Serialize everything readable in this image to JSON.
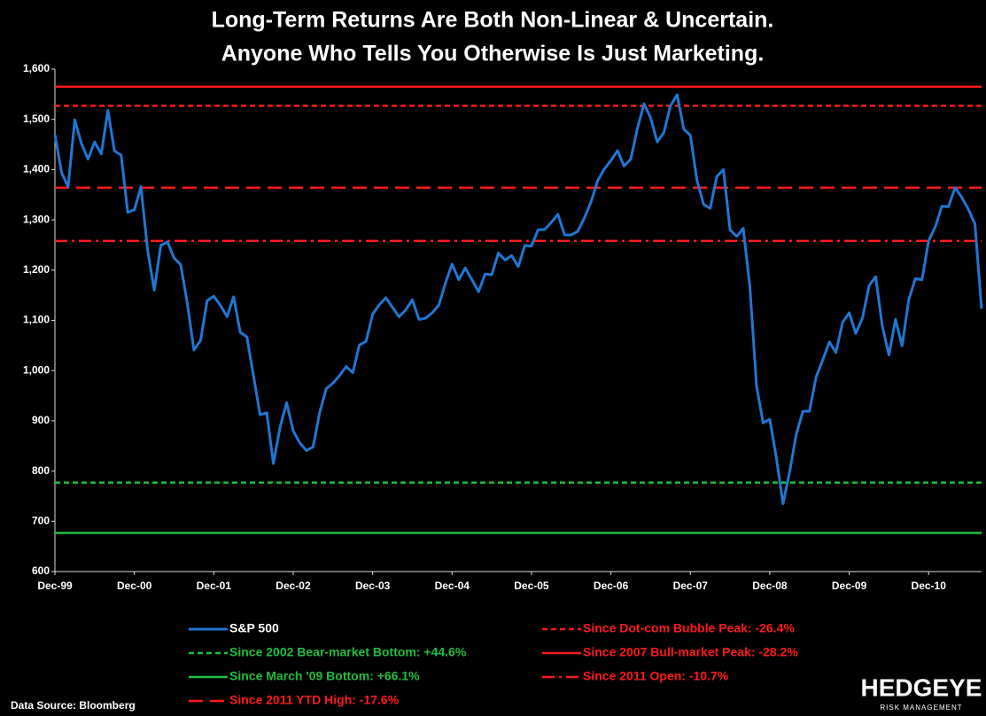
{
  "chart_data": {
    "type": "line",
    "title_lines": [
      "Long-Term Returns Are Both Non-Linear & Uncertain.",
      "Anyone Who Tells You Otherwise Is Just Marketing."
    ],
    "categories": [
      "Dec-99",
      null,
      null,
      null,
      null,
      null,
      null,
      null,
      null,
      null,
      null,
      null,
      "Dec-00",
      null,
      null,
      null,
      null,
      null,
      null,
      null,
      null,
      null,
      null,
      null,
      "Dec-01",
      null,
      null,
      null,
      null,
      null,
      null,
      null,
      null,
      null,
      null,
      null,
      "Dec-02",
      null,
      null,
      null,
      null,
      null,
      null,
      null,
      null,
      null,
      null,
      null,
      "Dec-03",
      null,
      null,
      null,
      null,
      null,
      null,
      null,
      null,
      null,
      null,
      null,
      "Dec-04",
      null,
      null,
      null,
      null,
      null,
      null,
      null,
      null,
      null,
      null,
      null,
      "Dec-05",
      null,
      null,
      null,
      null,
      null,
      null,
      null,
      null,
      null,
      null,
      null,
      "Dec-06",
      null,
      null,
      null,
      null,
      null,
      null,
      null,
      null,
      null,
      null,
      null,
      "Dec-07",
      null,
      null,
      null,
      null,
      null,
      null,
      null,
      null,
      null,
      null,
      null,
      "Dec-08",
      null,
      null,
      null,
      null,
      null,
      null,
      null,
      null,
      null,
      null,
      null,
      "Dec-09",
      null,
      null,
      null,
      null,
      null,
      null,
      null,
      null,
      null,
      null,
      null,
      "Dec-10",
      null,
      null,
      null,
      null,
      null,
      null,
      null,
      null
    ],
    "series": [
      {
        "name": "S&P 500",
        "color": "#1f77d4",
        "values": [
          1469,
          1394,
          1366,
          1499,
          1452,
          1421,
          1455,
          1431,
          1518,
          1437,
          1429,
          1315,
          1320,
          1366,
          1240,
          1160,
          1249,
          1256,
          1224,
          1211,
          1134,
          1041,
          1060,
          1139,
          1148,
          1130,
          1107,
          1147,
          1076,
          1067,
          990,
          912,
          916,
          815,
          886,
          936,
          880,
          856,
          841,
          848,
          917,
          964,
          975,
          990,
          1008,
          996,
          1051,
          1058,
          1112,
          1131,
          1145,
          1126,
          1107,
          1121,
          1141,
          1102,
          1104,
          1115,
          1130,
          1174,
          1212,
          1181,
          1204,
          1181,
          1157,
          1192,
          1191,
          1234,
          1220,
          1229,
          1207,
          1249,
          1248,
          1280,
          1281,
          1295,
          1311,
          1270,
          1270,
          1277,
          1304,
          1336,
          1378,
          1401,
          1418,
          1438,
          1407,
          1421,
          1482,
          1531,
          1503,
          1455,
          1474,
          1527,
          1549,
          1481,
          1468,
          1379,
          1331,
          1323,
          1386,
          1400,
          1280,
          1267,
          1283,
          1166,
          969,
          896,
          903,
          826,
          735,
          798,
          873,
          919,
          919,
          987,
          1021,
          1057,
          1036,
          1096,
          1115,
          1074,
          1104,
          1169,
          1187,
          1089,
          1031,
          1102,
          1049,
          1141,
          1183,
          1181,
          1258,
          1286,
          1327,
          1326,
          1364,
          1345,
          1321,
          1292,
          1123
        ]
      }
    ],
    "reference_lines": [
      {
        "name": "Since Dot-com Bubble Peak: -26.4%",
        "value": 1527,
        "color": "#ff1a1a",
        "style": "short-dash"
      },
      {
        "name": "Since 2002 Bear-market Bottom: +44.6%",
        "value": 777,
        "color": "#1fbf3f",
        "style": "short-dash"
      },
      {
        "name": "Since 2007 Bull-market Peak: -28.2%",
        "value": 1565,
        "color": "#ff1a1a",
        "style": "solid"
      },
      {
        "name": "Since March '09 Bottom: +66.1%",
        "value": 677,
        "color": "#1fbf3f",
        "style": "solid"
      },
      {
        "name": "Since 2011 Open: -10.7%",
        "value": 1258,
        "color": "#ff1a1a",
        "style": "dash-dot"
      },
      {
        "name": "Since 2011 YTD High: -17.6%",
        "value": 1364,
        "color": "#ff1a1a",
        "style": "long-dash"
      }
    ],
    "ylim": [
      600,
      1600
    ],
    "yticks": [
      600,
      700,
      800,
      900,
      {
        "value": 1000,
        "label": "1,000"
      },
      {
        "value": 1100,
        "label": "1,100"
      },
      {
        "value": 1200,
        "label": "1,200"
      },
      {
        "value": 1300,
        "label": "1,300"
      },
      {
        "value": 1400,
        "label": "1,400"
      },
      {
        "value": 1500,
        "label": "1,500"
      },
      {
        "value": 1600,
        "label": "1,600"
      }
    ],
    "grid": false,
    "source": "Data Source: Bloomberg",
    "logo": {
      "name": "HEDGEYE",
      "tagline": "RISK MANAGEMENT"
    }
  }
}
